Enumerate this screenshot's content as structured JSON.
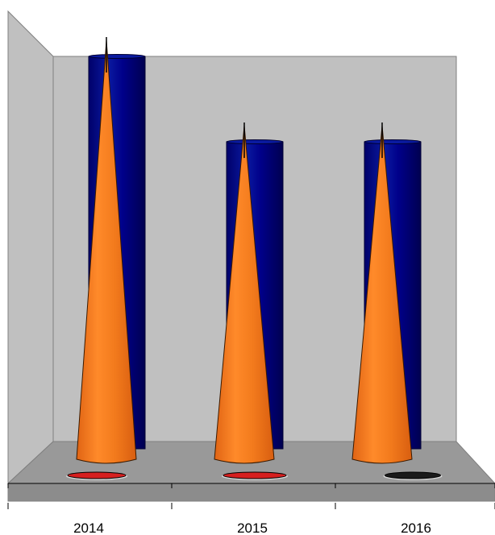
{
  "chart_data": {
    "type": "bar",
    "categories": [
      "2014",
      "2015",
      "2016"
    ],
    "series": [
      {
        "values": [
          100,
          79,
          79
        ],
        "color": "#00007f",
        "shape": "cylinder"
      },
      {
        "values": [
          100,
          79,
          79
        ],
        "color": "#f07a1e",
        "shape": "cone"
      },
      {
        "values": [
          0.4,
          0.6,
          0.3
        ],
        "color": "#d61f1f",
        "shape": "disc"
      }
    ],
    "ylim": [
      0,
      100
    ],
    "grid": false,
    "legend": "none",
    "view": "3d",
    "colors": {
      "back_wall": "#c0c0c0",
      "side_wall": "#c0c0c0",
      "floor": "#999999",
      "disc_last": "#1a1a1a"
    }
  }
}
